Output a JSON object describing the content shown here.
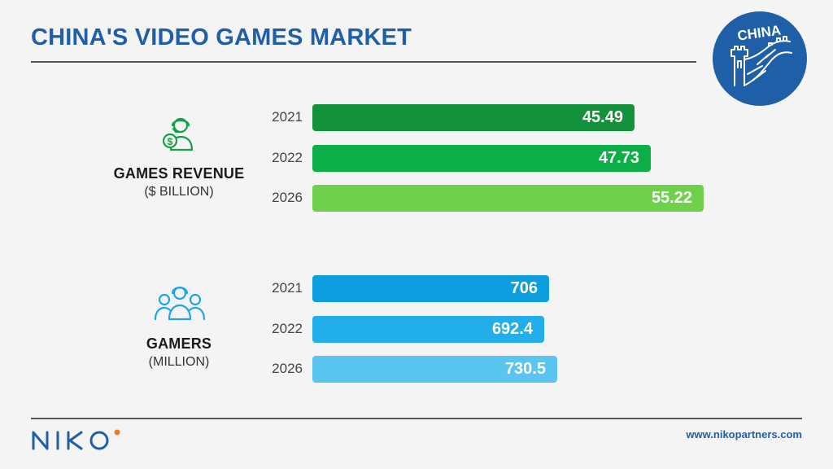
{
  "header": {
    "title": "CHINA'S VIDEO GAMES MARKET",
    "badge_text": "CHINA"
  },
  "footer": {
    "brand": "NIKO",
    "url": "www.nikopartners.com"
  },
  "colors": {
    "title_blue": "#1f5fa8",
    "revenue_2021": "#13913b",
    "revenue_2022": "#0cae48",
    "revenue_2026": "#6fd14b",
    "gamers_2021": "#0e9ee0",
    "gamers_2022": "#22aeea",
    "gamers_2026": "#5bc5f2",
    "badge_blue": "#1f5fa8",
    "logo_orange": "#f07d19"
  },
  "icons": {
    "revenue": "gamer-dollar-icon",
    "gamers": "gamers-group-icon",
    "badge": "great-wall-icon"
  },
  "chart_data": [
    {
      "type": "bar",
      "orientation": "horizontal",
      "title": "GAMES REVENUE",
      "unit": "($ BILLION)",
      "categories": [
        "2021",
        "2022",
        "2026"
      ],
      "values": [
        45.49,
        47.73,
        55.22
      ],
      "value_labels": [
        "45.49",
        "47.73",
        "55.22"
      ],
      "xlim": [
        0,
        55.22
      ],
      "grid": false
    },
    {
      "type": "bar",
      "orientation": "horizontal",
      "title": "GAMERS",
      "unit": "(MILLION)",
      "categories": [
        "2021",
        "2022",
        "2026"
      ],
      "values": [
        706,
        692.4,
        730.5
      ],
      "value_labels": [
        "706",
        "692.4",
        "730.5"
      ],
      "xlim": [
        0,
        1002
      ],
      "grid": false
    }
  ]
}
